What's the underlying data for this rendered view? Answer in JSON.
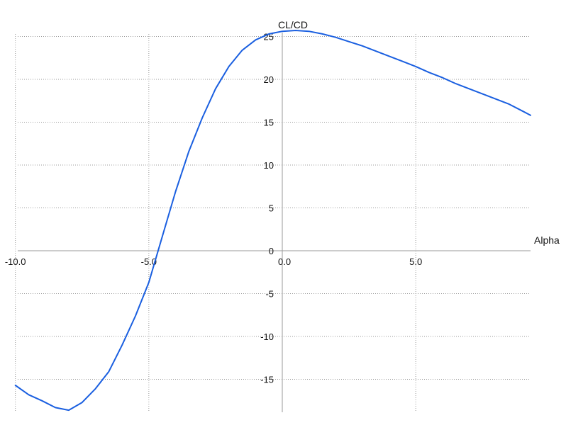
{
  "chart_data": {
    "type": "line",
    "title": "",
    "xlabel": "Alpha",
    "ylabel": "CL/CD",
    "xlim": [
      -10.0,
      9.3
    ],
    "ylim": [
      -18.5,
      26.5
    ],
    "grid": true,
    "x_ticks": [
      {
        "value": -10,
        "label": "-10.0"
      },
      {
        "value": -5,
        "label": "-5.0"
      },
      {
        "value": 0,
        "label": "0.0"
      },
      {
        "value": 5,
        "label": "5.0"
      }
    ],
    "y_ticks": [
      {
        "value": 25,
        "label": "25"
      },
      {
        "value": 20,
        "label": "20"
      },
      {
        "value": 15,
        "label": "15"
      },
      {
        "value": 10,
        "label": "10"
      },
      {
        "value": 5,
        "label": "5"
      },
      {
        "value": 0,
        "label": "0"
      },
      {
        "value": -5,
        "label": "-5"
      },
      {
        "value": -10,
        "label": "-10"
      },
      {
        "value": -15,
        "label": "-15"
      }
    ],
    "series": [
      {
        "color": "#1a5fe0",
        "x": [
          -10.0,
          -9.5,
          -9.0,
          -8.5,
          -8.0,
          -7.5,
          -7.0,
          -6.5,
          -6.0,
          -5.5,
          -5.0,
          -4.5,
          -4.0,
          -3.5,
          -3.0,
          -2.5,
          -2.0,
          -1.5,
          -1.0,
          -0.5,
          0.0,
          0.5,
          1.0,
          1.5,
          2.0,
          2.5,
          3.0,
          3.5,
          4.0,
          4.5,
          5.0,
          5.5,
          6.0,
          6.5,
          7.0,
          7.5,
          8.0,
          8.5,
          9.0,
          9.3
        ],
        "y": [
          -15.7,
          -16.8,
          -17.5,
          -18.3,
          -18.6,
          -17.7,
          -16.1,
          -14.1,
          -11.0,
          -7.6,
          -3.7,
          1.6,
          6.9,
          11.6,
          15.5,
          18.9,
          21.5,
          23.4,
          24.6,
          25.3,
          25.6,
          25.7,
          25.6,
          25.3,
          24.9,
          24.4,
          23.9,
          23.3,
          22.7,
          22.1,
          21.5,
          20.8,
          20.2,
          19.5,
          18.9,
          18.3,
          17.7,
          17.1,
          16.3,
          15.8
        ]
      }
    ]
  }
}
